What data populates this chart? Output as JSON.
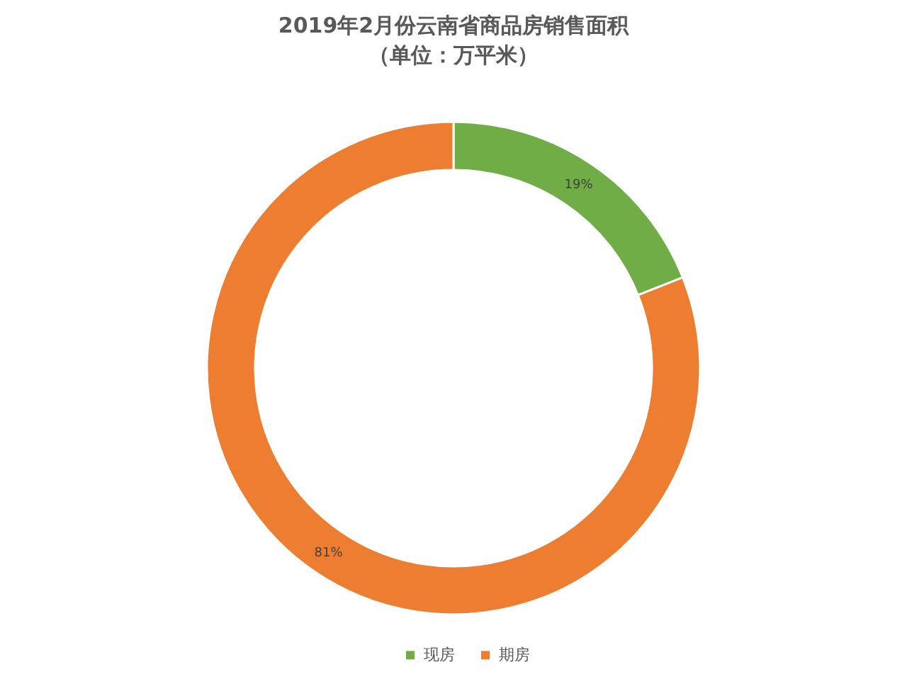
{
  "chart_data": {
    "type": "donut",
    "title": "2019年2月份云南省商品房销售面积",
    "subtitle": "（单位：万平米）",
    "categories": [
      "现房",
      "期房"
    ],
    "values": [
      19,
      81
    ],
    "colors": [
      "#70ad47",
      "#ed7d31"
    ],
    "value_labels": [
      "19%",
      "81%"
    ],
    "legend": "bottom"
  }
}
